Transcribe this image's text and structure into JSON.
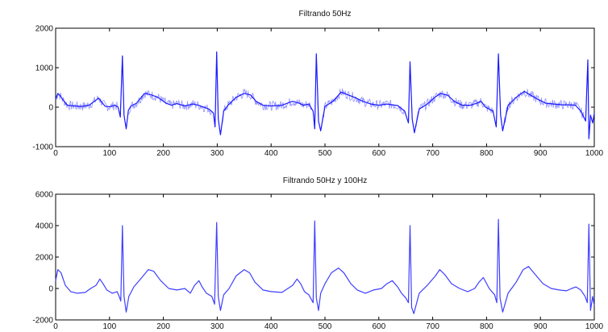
{
  "chart_data": [
    {
      "type": "line",
      "title": "Filtrando 50Hz",
      "xlabel": "",
      "ylabel": "",
      "xlim": [
        0,
        1000
      ],
      "ylim": [
        -1000,
        2000
      ],
      "xticks": [
        0,
        100,
        200,
        300,
        400,
        500,
        600,
        700,
        800,
        900,
        1000
      ],
      "yticks": [
        -1000,
        0,
        1000,
        2000
      ],
      "grid": false,
      "line_color": "#1a1aff",
      "noise_amplitude": 120,
      "beat_x": [
        124,
        299,
        484,
        658,
        822,
        990
      ],
      "series": [
        {
          "x": [
            0,
            4,
            8,
            14,
            22,
            35,
            50,
            62,
            72,
            80,
            86,
            92,
            100,
            110,
            116,
            120,
            124,
            127,
            131,
            135,
            140,
            150,
            165,
            178,
            190,
            205,
            215,
            225,
            240,
            255,
            265,
            275,
            285,
            293,
            296,
            299,
            302,
            306,
            312,
            320,
            335,
            350,
            362,
            372,
            385,
            400,
            420,
            440,
            452,
            460,
            470,
            478,
            481,
            484,
            488,
            492,
            500,
            515,
            530,
            545,
            555,
            570,
            585,
            600,
            615,
            635,
            648,
            655,
            658,
            662,
            666,
            675,
            690,
            705,
            715,
            728,
            740,
            755,
            770,
            782,
            790,
            798,
            812,
            818,
            822,
            826,
            830,
            840,
            855,
            870,
            882,
            895,
            910,
            925,
            940,
            955,
            965,
            975,
            984,
            988,
            990,
            993,
            997,
            1000
          ],
          "y": [
            200,
            350,
            300,
            180,
            50,
            30,
            20,
            50,
            150,
            230,
            120,
            20,
            10,
            50,
            0,
            -250,
            1300,
            -200,
            -550,
            -80,
            30,
            100,
            350,
            310,
            250,
            100,
            50,
            90,
            30,
            80,
            50,
            0,
            -50,
            -150,
            -500,
            1400,
            -300,
            -700,
            -100,
            50,
            250,
            350,
            310,
            150,
            50,
            30,
            50,
            150,
            100,
            50,
            80,
            -100,
            -550,
            1350,
            -350,
            -600,
            20,
            150,
            380,
            300,
            250,
            150,
            80,
            50,
            80,
            40,
            -100,
            -400,
            1150,
            -300,
            -650,
            -50,
            80,
            260,
            350,
            300,
            150,
            50,
            50,
            100,
            150,
            0,
            -100,
            -500,
            1350,
            -200,
            -600,
            50,
            250,
            400,
            300,
            200,
            100,
            80,
            60,
            60,
            50,
            -100,
            -350,
            1200,
            -800,
            -200,
            -400,
            -150
          ]
        }
      ]
    },
    {
      "type": "line",
      "title": "Filtrando 50Hz y 100Hz",
      "xlabel": "",
      "ylabel": "",
      "xlim": [
        0,
        1000
      ],
      "ylim": [
        -2000,
        6000
      ],
      "xticks": [
        0,
        100,
        200,
        300,
        400,
        500,
        600,
        700,
        800,
        900,
        1000
      ],
      "yticks": [
        -2000,
        0,
        2000,
        4000,
        6000
      ],
      "grid": false,
      "line_color": "#3f3fff",
      "series": [
        {
          "x": [
            0,
            4,
            10,
            18,
            28,
            40,
            55,
            65,
            75,
            82,
            88,
            95,
            105,
            114,
            118,
            121,
            124,
            127,
            131,
            136,
            145,
            160,
            172,
            182,
            195,
            210,
            225,
            240,
            250,
            258,
            266,
            272,
            280,
            290,
            295,
            299,
            302,
            306,
            312,
            322,
            335,
            350,
            360,
            370,
            385,
            400,
            420,
            440,
            448,
            455,
            462,
            470,
            478,
            481,
            484,
            488,
            492,
            500,
            512,
            525,
            535,
            548,
            560,
            575,
            590,
            605,
            615,
            625,
            635,
            642,
            650,
            655,
            658,
            661,
            665,
            675,
            690,
            705,
            713,
            722,
            735,
            750,
            765,
            778,
            786,
            794,
            805,
            815,
            819,
            822,
            825,
            830,
            840,
            855,
            868,
            878,
            890,
            905,
            920,
            935,
            948,
            958,
            966,
            975,
            983,
            987,
            990,
            993,
            997,
            1000
          ],
          "y": [
            500,
            1200,
            1000,
            200,
            -200,
            -300,
            -250,
            0,
            200,
            600,
            300,
            -100,
            -300,
            -200,
            -500,
            -800,
            4000,
            -500,
            -1500,
            -500,
            100,
            700,
            1200,
            1100,
            500,
            0,
            -100,
            0,
            -300,
            200,
            500,
            100,
            -300,
            -500,
            -1000,
            4200,
            -500,
            -1400,
            -400,
            0,
            800,
            1200,
            1000,
            400,
            -100,
            -200,
            -250,
            200,
            600,
            300,
            -200,
            -400,
            -900,
            4300,
            -600,
            -1400,
            -300,
            300,
            1000,
            1300,
            1000,
            300,
            -100,
            -300,
            -100,
            0,
            300,
            500,
            100,
            -300,
            -600,
            -900,
            4000,
            -1200,
            -1600,
            -300,
            200,
            800,
            1200,
            900,
            300,
            0,
            -200,
            0,
            400,
            700,
            0,
            -400,
            -900,
            4400,
            -600,
            -1500,
            -300,
            400,
            1200,
            1400,
            900,
            300,
            0,
            -100,
            -150,
            0,
            100,
            -100,
            -500,
            -900,
            4100,
            -1400,
            -500,
            -1100
          ]
        }
      ]
    }
  ]
}
